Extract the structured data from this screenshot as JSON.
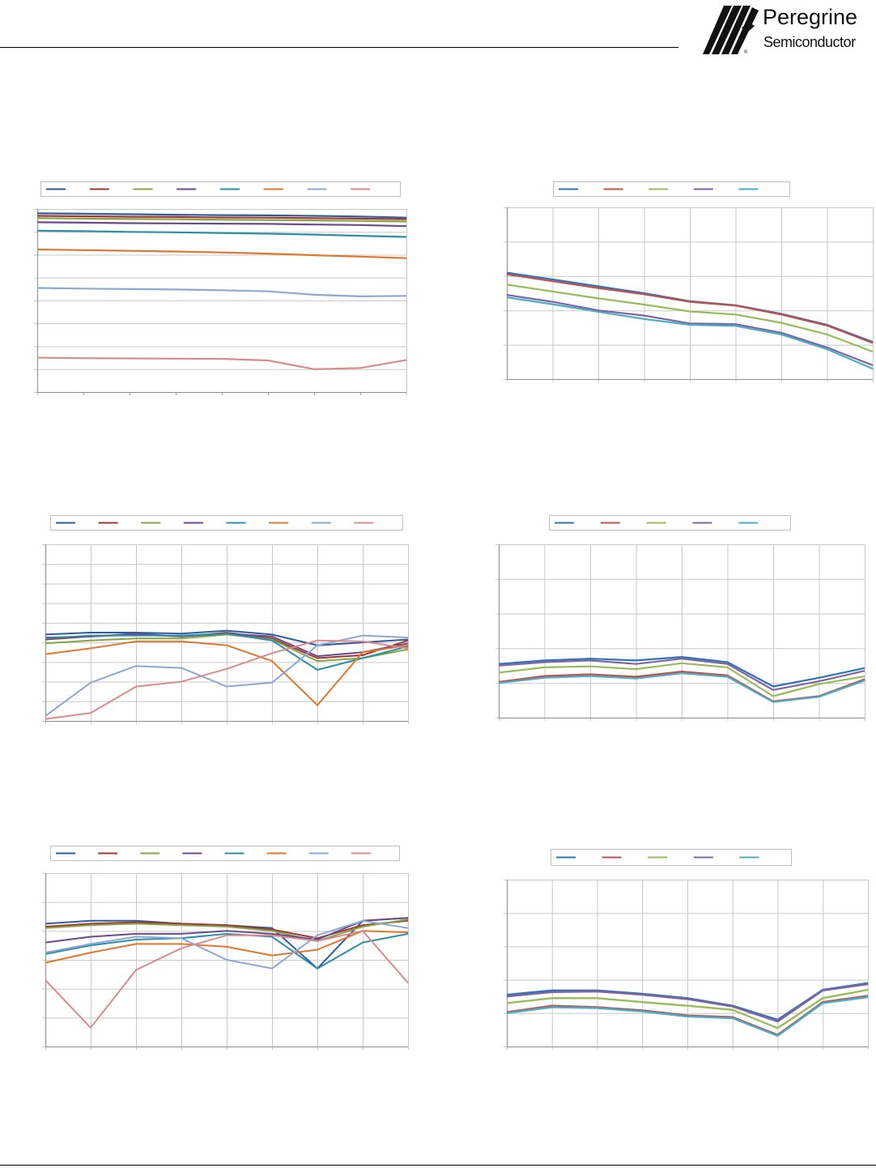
{
  "header": {
    "logo_name": "Peregrine",
    "logo_sub": "Semiconductor"
  },
  "chart_data": [
    {
      "type": "line",
      "legend_placement": "top",
      "grid": "horizontal",
      "categories": [
        "",
        "",
        "",
        "",
        "",
        "",
        "",
        "",
        ""
      ],
      "ylim": [
        0,
        8
      ],
      "y_ticks": 9,
      "series": [
        {
          "color": "#2E5D9E",
          "values": [
            7.81,
            7.79,
            7.77,
            7.75,
            7.73,
            7.72,
            7.7,
            7.67,
            7.62
          ]
        },
        {
          "color": "#A23633",
          "values": [
            7.7,
            7.68,
            7.66,
            7.65,
            7.63,
            7.62,
            7.6,
            7.58,
            7.55
          ]
        },
        {
          "color": "#86A540",
          "values": [
            7.6,
            7.58,
            7.56,
            7.55,
            7.53,
            7.52,
            7.5,
            7.48,
            7.45
          ]
        },
        {
          "color": "#6B4A8E",
          "values": [
            7.42,
            7.4,
            7.38,
            7.37,
            7.36,
            7.35,
            7.32,
            7.3,
            7.25
          ]
        },
        {
          "color": "#2B8EAA",
          "values": [
            7.05,
            7.03,
            7.0,
            6.98,
            6.95,
            6.92,
            6.88,
            6.83,
            6.78
          ]
        },
        {
          "color": "#E2772C",
          "values": [
            6.23,
            6.2,
            6.17,
            6.14,
            6.1,
            6.05,
            5.98,
            5.92,
            5.85
          ]
        },
        {
          "color": "#8EA8D3",
          "values": [
            4.55,
            4.52,
            4.5,
            4.48,
            4.45,
            4.4,
            4.25,
            4.18,
            4.2
          ]
        },
        {
          "color": "#D98C8C",
          "values": [
            1.5,
            1.48,
            1.47,
            1.46,
            1.45,
            1.38,
            1.0,
            1.05,
            1.4
          ]
        }
      ]
    },
    {
      "type": "line",
      "legend_placement": "top",
      "grid": "both",
      "categories": [
        "",
        "",
        "",
        "",
        "",
        "",
        "",
        "",
        ""
      ],
      "ylim": [
        0,
        5
      ],
      "y_ticks": 6,
      "series": [
        {
          "color": "#2E75B6",
          "values": [
            3.1,
            2.9,
            2.7,
            2.5,
            2.27,
            2.15,
            1.9,
            1.58,
            1.08
          ]
        },
        {
          "color": "#C0504D",
          "values": [
            3.05,
            2.85,
            2.65,
            2.47,
            2.25,
            2.14,
            1.88,
            1.56,
            1.05
          ]
        },
        {
          "color": "#9BBB59",
          "values": [
            2.75,
            2.55,
            2.35,
            2.17,
            1.97,
            1.88,
            1.64,
            1.3,
            0.8
          ]
        },
        {
          "color": "#8064A2",
          "values": [
            2.45,
            2.25,
            2.0,
            1.85,
            1.62,
            1.6,
            1.35,
            0.92,
            0.4
          ]
        },
        {
          "color": "#4BACC6",
          "values": [
            2.38,
            2.18,
            1.96,
            1.75,
            1.58,
            1.55,
            1.3,
            0.87,
            0.3
          ]
        }
      ]
    },
    {
      "type": "line",
      "legend_placement": "top",
      "grid": "both",
      "categories": [
        "",
        "",
        "",
        "",
        "",
        "",
        "",
        "",
        ""
      ],
      "ylim": [
        0,
        9
      ],
      "y_ticks": 10,
      "series": [
        {
          "color": "#2E5D9E",
          "values": [
            4.4,
            4.5,
            4.5,
            4.45,
            4.6,
            4.4,
            3.85,
            4.0,
            4.15
          ]
        },
        {
          "color": "#A23633",
          "values": [
            4.15,
            4.3,
            4.4,
            4.3,
            4.5,
            4.2,
            3.2,
            3.35,
            4.1
          ]
        },
        {
          "color": "#86A540",
          "values": [
            3.95,
            4.1,
            4.2,
            4.2,
            4.4,
            4.15,
            3.05,
            3.2,
            3.65
          ]
        },
        {
          "color": "#6B4A8E",
          "values": [
            4.25,
            4.3,
            4.45,
            4.3,
            4.45,
            4.3,
            3.3,
            3.5,
            3.95
          ]
        },
        {
          "color": "#2B8EAA",
          "values": [
            4.2,
            4.35,
            4.35,
            4.35,
            4.45,
            4.1,
            2.6,
            3.2,
            3.8
          ]
        },
        {
          "color": "#E2772C",
          "values": [
            3.4,
            3.7,
            4.05,
            4.05,
            3.85,
            3.05,
            0.8,
            3.5,
            3.85
          ]
        },
        {
          "color": "#8EA8D3",
          "values": [
            0.25,
            1.95,
            2.8,
            2.7,
            1.75,
            1.95,
            3.85,
            4.35,
            4.25
          ]
        },
        {
          "color": "#D98C8C",
          "values": [
            0.1,
            0.4,
            1.75,
            2.0,
            2.65,
            3.45,
            4.1,
            4.05,
            3.7
          ]
        }
      ]
    },
    {
      "type": "line",
      "legend_placement": "top",
      "grid": "both",
      "categories": [
        "",
        "",
        "",
        "",
        "",
        "",
        "",
        "",
        ""
      ],
      "ylim": [
        0,
        5
      ],
      "y_ticks": 6,
      "series": [
        {
          "color": "#2E75B6",
          "values": [
            1.55,
            1.65,
            1.7,
            1.65,
            1.75,
            1.6,
            0.9,
            1.15,
            1.43
          ]
        },
        {
          "color": "#C0504D",
          "values": [
            1.03,
            1.2,
            1.25,
            1.18,
            1.33,
            1.22,
            0.47,
            0.62,
            1.11
          ]
        },
        {
          "color": "#9BBB59",
          "values": [
            1.3,
            1.45,
            1.48,
            1.4,
            1.57,
            1.45,
            0.62,
            0.97,
            1.19
          ]
        },
        {
          "color": "#8064A2",
          "values": [
            1.5,
            1.6,
            1.65,
            1.55,
            1.7,
            1.55,
            0.8,
            1.05,
            1.35
          ]
        },
        {
          "color": "#4BACC6",
          "values": [
            1.0,
            1.15,
            1.2,
            1.13,
            1.28,
            1.18,
            0.45,
            0.6,
            1.07
          ]
        }
      ]
    },
    {
      "type": "line",
      "legend_placement": "top",
      "grid": "both",
      "categories": [
        "",
        "",
        "",
        "",
        "",
        "",
        "",
        "",
        ""
      ],
      "ylim": [
        0,
        6
      ],
      "y_ticks": 7,
      "series": [
        {
          "color": "#2E5D9E",
          "values": [
            4.25,
            4.35,
            4.35,
            4.25,
            4.2,
            4.1,
            2.7,
            4.35,
            4.45
          ]
        },
        {
          "color": "#A23633",
          "values": [
            4.15,
            4.25,
            4.3,
            4.25,
            4.2,
            4.05,
            3.75,
            4.2,
            4.35
          ]
        },
        {
          "color": "#86A540",
          "values": [
            4.1,
            4.2,
            4.25,
            4.2,
            4.15,
            4.0,
            3.65,
            4.15,
            4.4
          ]
        },
        {
          "color": "#6B4A8E",
          "values": [
            3.6,
            3.8,
            3.9,
            3.9,
            4.0,
            3.9,
            3.7,
            4.35,
            4.45
          ]
        },
        {
          "color": "#2B8EAA",
          "values": [
            3.2,
            3.5,
            3.7,
            3.75,
            3.9,
            3.8,
            2.7,
            3.6,
            3.9
          ]
        },
        {
          "color": "#E2772C",
          "values": [
            2.9,
            3.25,
            3.55,
            3.55,
            3.45,
            3.15,
            3.35,
            4.0,
            3.95
          ]
        },
        {
          "color": "#8EA8D3",
          "values": [
            3.25,
            3.55,
            3.8,
            3.75,
            3.0,
            2.7,
            3.85,
            4.35,
            4.1
          ]
        },
        {
          "color": "#D98C8C",
          "values": [
            2.3,
            0.65,
            2.65,
            3.4,
            3.85,
            3.85,
            3.65,
            4.0,
            2.2
          ]
        }
      ]
    },
    {
      "type": "line",
      "legend_placement": "top",
      "grid": "both",
      "categories": [
        "",
        "",
        "",
        "",
        "",
        "",
        "",
        "",
        ""
      ],
      "ylim": [
        0,
        5
      ],
      "y_ticks": 6,
      "series": [
        {
          "color": "#2E75B6",
          "values": [
            1.55,
            1.68,
            1.68,
            1.58,
            1.45,
            1.22,
            0.8,
            1.7,
            1.9
          ]
        },
        {
          "color": "#C0504D",
          "values": [
            1.03,
            1.22,
            1.18,
            1.08,
            0.93,
            0.88,
            0.35,
            1.33,
            1.52
          ]
        },
        {
          "color": "#9BBB59",
          "values": [
            1.3,
            1.45,
            1.45,
            1.33,
            1.22,
            1.1,
            0.55,
            1.45,
            1.7
          ]
        },
        {
          "color": "#8064A2",
          "values": [
            1.5,
            1.63,
            1.65,
            1.55,
            1.42,
            1.2,
            0.75,
            1.68,
            1.87
          ]
        },
        {
          "color": "#4BACC6",
          "values": [
            1.0,
            1.18,
            1.15,
            1.05,
            0.9,
            0.85,
            0.32,
            1.3,
            1.48
          ]
        }
      ]
    }
  ]
}
